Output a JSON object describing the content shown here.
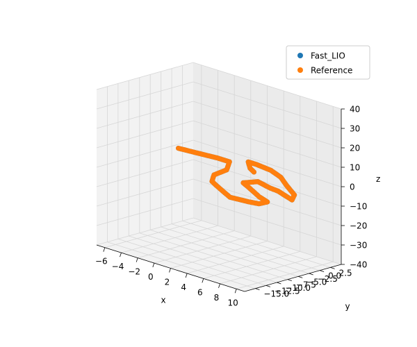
{
  "chart_data": {
    "type": "scatter",
    "projection": "3d",
    "xlabel": "x",
    "ylabel": "y",
    "zlabel": "z",
    "xlim": [
      -7,
      11
    ],
    "ylim": [
      -17.5,
      5
    ],
    "zlim": [
      -40,
      40
    ],
    "xticks": [
      -6,
      -4,
      -2,
      0,
      2,
      4,
      6,
      8,
      10
    ],
    "xtick_labels": [
      "−6",
      "−4",
      "−2",
      "0",
      "2",
      "4",
      "6",
      "8",
      "10"
    ],
    "yticks": [
      -15,
      -12.5,
      -10,
      -7.5,
      -5,
      -2.5,
      0,
      2.5
    ],
    "ytick_labels": [
      "−15.0",
      "−12.5",
      "−10.0",
      "−7.5",
      "−5.0",
      "−2.5",
      "0.0",
      "2.5"
    ],
    "zticks": [
      -40,
      -30,
      -20,
      -10,
      0,
      10,
      20,
      30,
      40
    ],
    "ztick_labels": [
      "−40",
      "−30",
      "−20",
      "−10",
      "0",
      "10",
      "20",
      "30",
      "40"
    ],
    "grid": true,
    "legend_position": "top-right",
    "series": [
      {
        "name": "Fast_LIO",
        "color": "#1f77b4",
        "points": [
          {
            "x": -6.2,
            "y": 0.0,
            "z": 0
          },
          {
            "x": -4.0,
            "y": 0.5,
            "z": 0
          },
          {
            "x": -2.0,
            "y": 1.0,
            "z": 0
          },
          {
            "x": -0.5,
            "y": 1.0,
            "z": 0
          },
          {
            "x": 0.2,
            "y": -1.0,
            "z": -2
          },
          {
            "x": -0.3,
            "y": -3.0,
            "z": -4
          },
          {
            "x": 0.5,
            "y": -5.0,
            "z": -5
          },
          {
            "x": 1.5,
            "y": -6.0,
            "z": -5
          },
          {
            "x": 3.0,
            "y": -7.0,
            "z": -6
          },
          {
            "x": 4.0,
            "y": -7.5,
            "z": -7
          },
          {
            "x": 6.0,
            "y": -7.0,
            "z": -7
          },
          {
            "x": 7.0,
            "y": -6.5,
            "z": -7
          },
          {
            "x": 7.5,
            "y": -5.5,
            "z": -6
          },
          {
            "x": 6.0,
            "y": -4.5,
            "z": -6
          },
          {
            "x": 4.0,
            "y": -3.0,
            "z": -5
          },
          {
            "x": 3.0,
            "y": -2.5,
            "z": -4
          },
          {
            "x": 4.0,
            "y": -1.0,
            "z": -3
          },
          {
            "x": 6.0,
            "y": -2.0,
            "z": -3
          },
          {
            "x": 7.5,
            "y": -3.0,
            "z": -2
          },
          {
            "x": 9.0,
            "y": -4.5,
            "z": -1
          },
          {
            "x": 10.5,
            "y": -5.5,
            "z": -1
          },
          {
            "x": 10.0,
            "y": -4.0,
            "z": 0
          },
          {
            "x": 8.0,
            "y": -2.0,
            "z": 1
          },
          {
            "x": 6.0,
            "y": 0.5,
            "z": 1
          },
          {
            "x": 4.0,
            "y": 2.0,
            "z": 1
          },
          {
            "x": 2.0,
            "y": 2.5,
            "z": 1
          },
          {
            "x": 1.0,
            "y": 2.5,
            "z": 1
          },
          {
            "x": 2.0,
            "y": 1.0,
            "z": 0
          },
          {
            "x": 3.0,
            "y": 0.0,
            "z": 0
          }
        ]
      },
      {
        "name": "Reference",
        "color": "#ff7f0e",
        "points": [
          {
            "x": -6.2,
            "y": 0.0,
            "z": 0
          },
          {
            "x": -4.0,
            "y": 0.5,
            "z": 0
          },
          {
            "x": -2.0,
            "y": 1.0,
            "z": 0
          },
          {
            "x": -0.5,
            "y": 1.0,
            "z": 0
          },
          {
            "x": 0.2,
            "y": -1.0,
            "z": -2
          },
          {
            "x": -0.3,
            "y": -3.0,
            "z": -4
          },
          {
            "x": 0.5,
            "y": -5.0,
            "z": -5
          },
          {
            "x": 1.5,
            "y": -6.0,
            "z": -5
          },
          {
            "x": 3.0,
            "y": -7.0,
            "z": -6
          },
          {
            "x": 4.0,
            "y": -7.5,
            "z": -7
          },
          {
            "x": 6.0,
            "y": -7.0,
            "z": -7
          },
          {
            "x": 7.0,
            "y": -6.5,
            "z": -7
          },
          {
            "x": 7.5,
            "y": -5.5,
            "z": -6
          },
          {
            "x": 6.0,
            "y": -4.5,
            "z": -6
          },
          {
            "x": 4.0,
            "y": -3.0,
            "z": -5
          },
          {
            "x": 3.0,
            "y": -2.5,
            "z": -4
          },
          {
            "x": 4.0,
            "y": -1.0,
            "z": -3
          },
          {
            "x": 6.0,
            "y": -2.0,
            "z": -3
          },
          {
            "x": 7.5,
            "y": -3.0,
            "z": -2
          },
          {
            "x": 9.0,
            "y": -4.5,
            "z": -1
          },
          {
            "x": 10.5,
            "y": -5.5,
            "z": -1
          },
          {
            "x": 10.0,
            "y": -4.0,
            "z": 0
          },
          {
            "x": 8.0,
            "y": -2.0,
            "z": 1
          },
          {
            "x": 6.0,
            "y": 0.5,
            "z": 1
          },
          {
            "x": 4.0,
            "y": 2.0,
            "z": 1
          },
          {
            "x": 2.0,
            "y": 2.5,
            "z": 1
          },
          {
            "x": 1.0,
            "y": 2.5,
            "z": 1
          },
          {
            "x": 2.0,
            "y": 1.0,
            "z": 0
          },
          {
            "x": 3.0,
            "y": 0.0,
            "z": 0
          }
        ]
      }
    ]
  }
}
